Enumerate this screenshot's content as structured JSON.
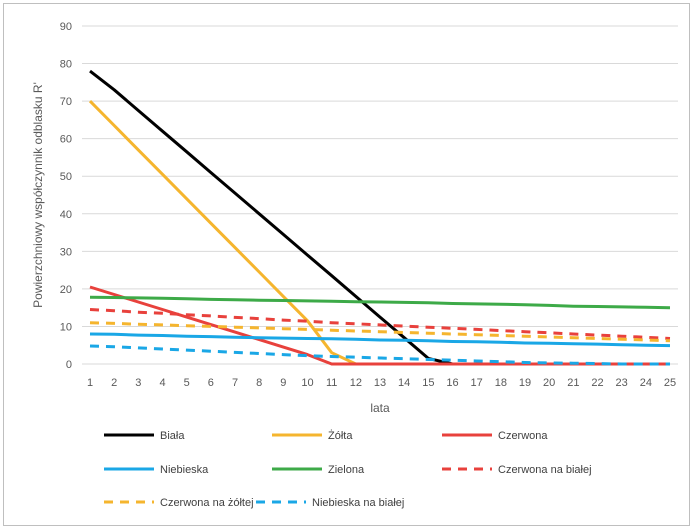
{
  "chart_data": {
    "type": "line",
    "title": "",
    "xlabel": "lata",
    "ylabel": "Powierzchniowy współczynnik odblasku R'",
    "x": [
      1,
      2,
      3,
      4,
      5,
      6,
      7,
      8,
      9,
      10,
      11,
      12,
      13,
      14,
      15,
      16,
      17,
      18,
      19,
      20,
      21,
      22,
      23,
      24,
      25
    ],
    "ylim": [
      0,
      90
    ],
    "yticks": [
      0,
      10,
      20,
      30,
      40,
      50,
      60,
      70,
      80,
      90
    ],
    "grid": "horizontal",
    "legend_position": "bottom",
    "series": [
      {
        "name": "Biała",
        "color": "#000000",
        "dash": "solid",
        "values": [
          78,
          73,
          67.5,
          62,
          56.5,
          51,
          45.5,
          40,
          34.5,
          29,
          23.5,
          18,
          12.5,
          7,
          1.5,
          0,
          0,
          0,
          0,
          0,
          0,
          0,
          0,
          0,
          0
        ]
      },
      {
        "name": "Żółta",
        "color": "#f5b52e",
        "dash": "solid",
        "values": [
          70,
          63.5,
          57,
          50.5,
          44,
          37.5,
          31,
          24.5,
          18,
          11.5,
          3,
          0,
          0,
          0,
          0,
          0,
          0,
          0,
          0,
          0,
          0,
          0,
          0,
          0,
          0
        ]
      },
      {
        "name": "Czerwona",
        "color": "#e8413c",
        "dash": "solid",
        "values": [
          20.5,
          18.5,
          16.5,
          14.5,
          12.5,
          10.5,
          8.5,
          6.5,
          4.5,
          2.5,
          0,
          0,
          0,
          0,
          0,
          0,
          0,
          0,
          0,
          0,
          0,
          0,
          0,
          0,
          0
        ]
      },
      {
        "name": "Niebieska",
        "color": "#1aa7e6",
        "dash": "solid",
        "values": [
          8,
          7.9,
          7.7,
          7.6,
          7.4,
          7.3,
          7.1,
          7,
          6.9,
          6.8,
          6.7,
          6.6,
          6.4,
          6.3,
          6.2,
          6,
          5.9,
          5.8,
          5.6,
          5.5,
          5.4,
          5.3,
          5.1,
          5,
          4.9
        ]
      },
      {
        "name": "Zielona",
        "color": "#3daa48",
        "dash": "solid",
        "values": [
          17.8,
          17.7,
          17.6,
          17.5,
          17.4,
          17.2,
          17.1,
          17,
          16.9,
          16.8,
          16.7,
          16.6,
          16.5,
          16.4,
          16.3,
          16.1,
          16,
          15.9,
          15.8,
          15.6,
          15.4,
          15.3,
          15.2,
          15.1,
          15
        ]
      },
      {
        "name": "Czerwona na białej",
        "color": "#e8413c",
        "dash": "dashed",
        "values": [
          14.5,
          14.2,
          13.8,
          13.5,
          13.1,
          12.8,
          12.4,
          12.1,
          11.7,
          11.4,
          11,
          10.7,
          10.4,
          10.1,
          9.8,
          9.5,
          9.2,
          8.9,
          8.6,
          8.3,
          8,
          7.7,
          7.4,
          7.1,
          6.8
        ]
      },
      {
        "name": "Czerwona na żółtej",
        "color": "#f5b52e",
        "dash": "dashed",
        "values": [
          11,
          10.8,
          10.6,
          10.4,
          10.2,
          10,
          9.8,
          9.6,
          9.4,
          9.2,
          9,
          8.8,
          8.6,
          8.4,
          8.2,
          8,
          7.8,
          7.6,
          7.4,
          7.2,
          7,
          6.8,
          6.6,
          6.4,
          6.2
        ]
      },
      {
        "name": "Niebieska na białej",
        "color": "#1aa7e6",
        "dash": "dashed",
        "values": [
          4.8,
          4.6,
          4.3,
          4,
          3.7,
          3.4,
          3.1,
          2.8,
          2.5,
          2.2,
          2,
          1.8,
          1.6,
          1.4,
          1.2,
          1,
          0.8,
          0.6,
          0.4,
          0.3,
          0.2,
          0.1,
          0,
          0,
          0
        ]
      }
    ]
  }
}
